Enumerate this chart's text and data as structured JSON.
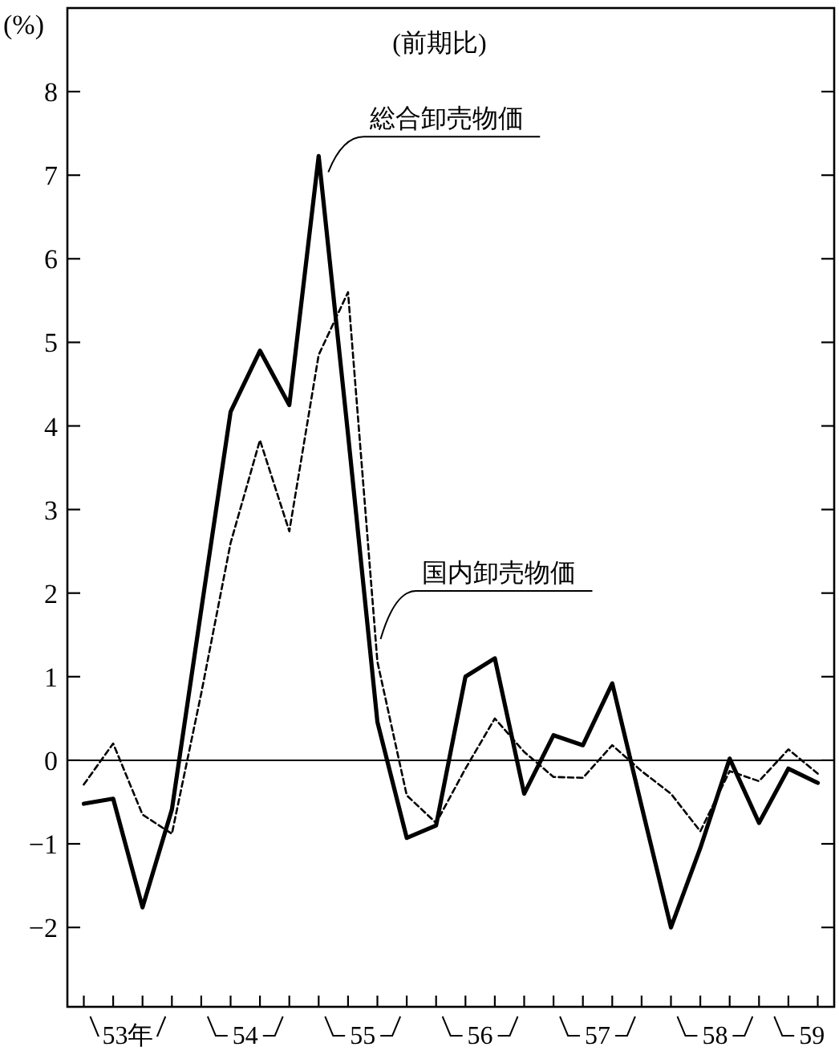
{
  "chart_data": {
    "type": "line",
    "ylabel": "(%)",
    "annotations": [
      "(前期比)"
    ],
    "x": [
      53,
      53.25,
      53.5,
      53.75,
      54,
      54.25,
      54.5,
      54.75,
      55,
      55.25,
      55.5,
      55.75,
      56,
      56.25,
      56.5,
      56.75,
      57,
      57.25,
      57.5,
      57.75,
      58,
      58.25,
      58.5,
      58.75,
      59,
      59.25
    ],
    "xlim": [
      52.86,
      59.39
    ],
    "xticks": [
      {
        "value": 53,
        "label": null
      },
      {
        "value": 53.25,
        "label": null
      },
      {
        "value": 53.5,
        "label": null
      },
      {
        "value": 53.75,
        "label": null
      },
      {
        "value": 54,
        "label": null
      },
      {
        "value": 54.25,
        "label": null
      },
      {
        "value": 54.5,
        "label": null
      },
      {
        "value": 54.75,
        "label": null
      },
      {
        "value": 55,
        "label": null
      },
      {
        "value": 55.25,
        "label": null
      },
      {
        "value": 55.5,
        "label": null
      },
      {
        "value": 55.75,
        "label": null
      },
      {
        "value": 56,
        "label": null
      },
      {
        "value": 56.25,
        "label": null
      },
      {
        "value": 56.5,
        "label": null
      },
      {
        "value": 56.75,
        "label": null
      },
      {
        "value": 57,
        "label": null
      },
      {
        "value": 57.25,
        "label": null
      },
      {
        "value": 57.5,
        "label": null
      },
      {
        "value": 57.75,
        "label": null
      },
      {
        "value": 58,
        "label": null
      },
      {
        "value": 58.25,
        "label": null
      },
      {
        "value": 58.5,
        "label": null
      },
      {
        "value": 58.75,
        "label": null
      },
      {
        "value": 59,
        "label": null
      },
      {
        "value": 59.25,
        "label": null
      },
      {
        "value": 53.375,
        "label": "53年"
      },
      {
        "value": 54.375,
        "label": "54"
      },
      {
        "value": 55.375,
        "label": "55"
      },
      {
        "value": 56.375,
        "label": "56"
      },
      {
        "value": 57.375,
        "label": "57"
      },
      {
        "value": 58.375,
        "label": "58"
      },
      {
        "value": 59.2,
        "label": "59"
      }
    ],
    "ylim": [
      -2.95,
      9.0
    ],
    "yticks": [
      -2,
      -1,
      0,
      1,
      2,
      3,
      4,
      5,
      6,
      7,
      8
    ],
    "ref_lines": [
      {
        "axis": "y",
        "value": 0,
        "color": "#000000"
      }
    ],
    "legend": false,
    "grid": false,
    "marker": "none",
    "series": [
      {
        "name": "総合卸売物価",
        "color": "#000000",
        "line_style": "solid",
        "values": [
          -0.52,
          -0.46,
          -1.76,
          -0.59,
          1.8,
          4.17,
          4.9,
          4.25,
          7.23,
          3.9,
          0.46,
          -0.93,
          -0.78,
          1.0,
          1.22,
          -0.4,
          0.3,
          0.18,
          0.92,
          -0.55,
          -2.0,
          -1.05,
          0.02,
          -0.75,
          -0.1,
          -0.27
        ]
      },
      {
        "name": "国内卸売物価",
        "color": "#000000",
        "line_style": "dashed",
        "values": [
          -0.29,
          0.2,
          -0.65,
          -0.88,
          0.8,
          2.6,
          3.83,
          2.74,
          4.85,
          5.6,
          1.18,
          -0.42,
          -0.75,
          -0.1,
          0.5,
          0.1,
          -0.2,
          -0.21,
          0.18,
          -0.13,
          -0.4,
          -0.85,
          -0.13,
          -0.25,
          0.13,
          -0.16
        ]
      }
    ]
  }
}
